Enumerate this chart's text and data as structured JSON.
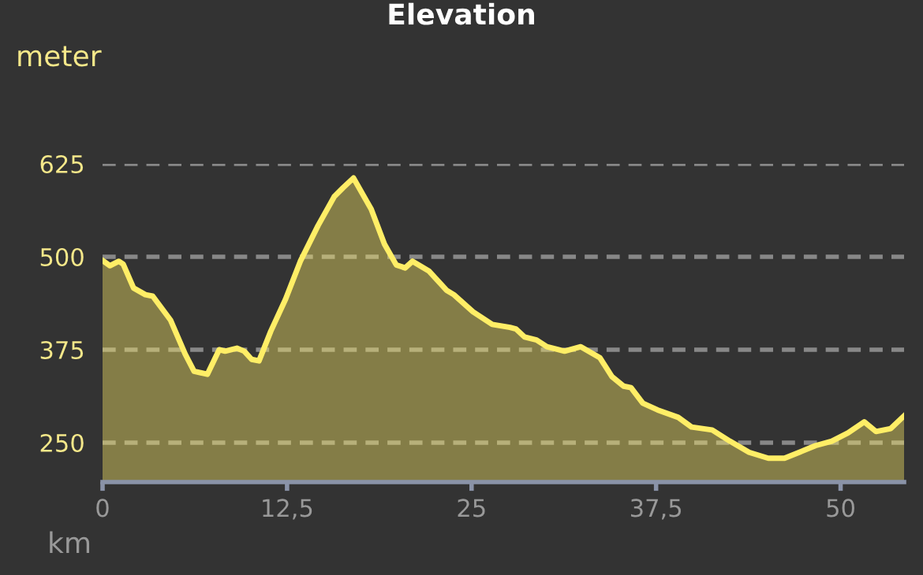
{
  "chart_data": {
    "type": "area",
    "title": "Elevation",
    "xlabel": "km",
    "ylabel": "meter",
    "x": [
      0,
      0.5,
      1.1,
      1.4,
      2.1,
      2.9,
      3.4,
      4.6,
      5.6,
      6.2,
      7.1,
      7.9,
      8.3,
      9.1,
      9.6,
      10.1,
      10.6,
      11.4,
      12.4,
      13.4,
      14.6,
      15.7,
      16.3,
      17.0,
      18.2,
      19.1,
      19.9,
      20.5,
      21.0,
      22.1,
      23.3,
      23.8,
      25.1,
      26.4,
      27.6,
      28.0,
      28.6,
      29.4,
      30.1,
      31.3,
      32.4,
      33.7,
      34.5,
      35.3,
      35.8,
      36.6,
      37.6,
      39.0,
      39.9,
      41.3,
      42.5,
      43.8,
      45.1,
      46.2,
      47.2,
      48.3,
      49.4,
      50.5,
      51.6,
      52.4,
      53.4,
      54.3
    ],
    "series": [
      {
        "color": "#ffee66",
        "values": [
          495,
          488,
          494,
          490,
          458,
          449,
          447,
          415,
          369,
          346,
          342,
          375,
          373,
          377,
          373,
          362,
          360,
          400,
          443,
          494,
          542,
          581,
          593,
          606,
          564,
          517,
          489,
          485,
          494,
          481,
          455,
          449,
          426,
          409,
          405,
          403,
          392,
          388,
          379,
          373,
          379,
          364,
          339,
          326,
          324,
          303,
          294,
          284,
          271,
          267,
          252,
          237,
          229,
          229,
          237,
          246,
          252,
          263,
          278,
          265,
          269,
          286
        ]
      }
    ],
    "xlim": [
      0,
      54.3
    ],
    "ylim": [
      197,
      625
    ],
    "xticks": [
      0,
      {
        "value": 12.5,
        "label": "12,5"
      },
      25,
      {
        "value": 37.5,
        "label": "37,5"
      },
      50
    ],
    "yticks": [
      250,
      375,
      500,
      625
    ],
    "grid": "y",
    "line_style": "solid",
    "marker": "none"
  }
}
